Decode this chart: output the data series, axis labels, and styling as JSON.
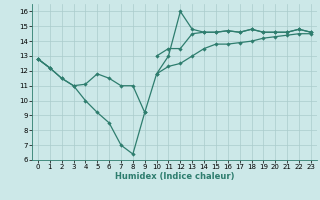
{
  "xlabel": "Humidex (Indice chaleur)",
  "x_values": [
    0,
    1,
    2,
    3,
    4,
    5,
    6,
    7,
    8,
    9,
    10,
    11,
    12,
    13,
    14,
    15,
    16,
    17,
    18,
    19,
    20,
    21,
    22,
    23
  ],
  "line_low": [
    12.8,
    12.2,
    11.5,
    11.0,
    10.0,
    9.2,
    8.5,
    7.0,
    6.4,
    9.2,
    null,
    null,
    null,
    null,
    null,
    null,
    null,
    null,
    null,
    null,
    null,
    null,
    null,
    null
  ],
  "line_mid": [
    12.8,
    12.2,
    11.5,
    11.0,
    11.1,
    11.8,
    11.5,
    11.0,
    11.0,
    9.2,
    11.8,
    12.3,
    12.5,
    13.0,
    13.5,
    13.8,
    13.8,
    13.9,
    14.0,
    14.2,
    14.3,
    14.4,
    14.5,
    14.5
  ],
  "line_peak": [
    null,
    null,
    null,
    null,
    null,
    null,
    null,
    null,
    null,
    null,
    11.8,
    13.0,
    16.0,
    14.8,
    14.6,
    14.6,
    14.7,
    14.6,
    14.8,
    14.6,
    14.6,
    14.6,
    14.8,
    14.6
  ],
  "line_top": [
    12.8,
    12.2,
    null,
    null,
    null,
    null,
    null,
    null,
    null,
    null,
    13.0,
    13.5,
    13.5,
    14.5,
    14.6,
    14.6,
    14.7,
    14.6,
    14.8,
    14.6,
    14.6,
    14.6,
    14.8,
    14.6
  ],
  "ylim": [
    6,
    16.5
  ],
  "xlim": [
    -0.5,
    23.5
  ],
  "yticks": [
    6,
    7,
    8,
    9,
    10,
    11,
    12,
    13,
    14,
    15,
    16
  ],
  "xticks": [
    0,
    1,
    2,
    3,
    4,
    5,
    6,
    7,
    8,
    9,
    10,
    11,
    12,
    13,
    14,
    15,
    16,
    17,
    18,
    19,
    20,
    21,
    22,
    23
  ],
  "line_color": "#2e7d6e",
  "bg_color": "#cce8e8",
  "grid_color": "#aacccc"
}
